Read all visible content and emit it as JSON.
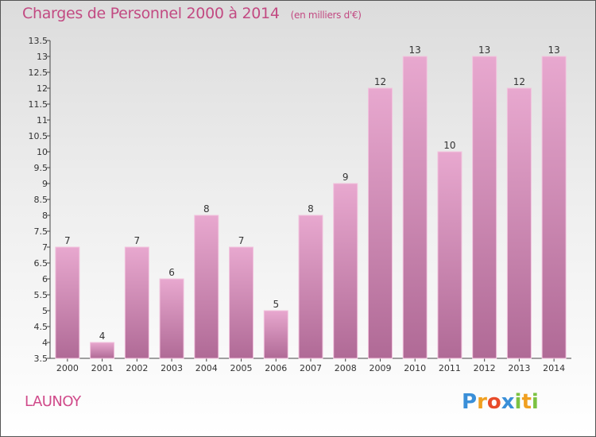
{
  "chart_data": {
    "type": "bar",
    "title": "Charges de Personnel 2000 à 2014",
    "subtitle": "(en milliers d'€)",
    "categories": [
      "2000",
      "2001",
      "2002",
      "2003",
      "2004",
      "2005",
      "2006",
      "2007",
      "2008",
      "2009",
      "2010",
      "2011",
      "2012",
      "2013",
      "2014"
    ],
    "values": [
      7,
      4,
      7,
      6,
      8,
      7,
      5,
      8,
      9,
      12,
      13,
      10,
      13,
      12,
      13
    ],
    "ylim": [
      3.5,
      13.5
    ],
    "yticks": [
      "3.5",
      "4",
      "4.5",
      "5",
      "5.5",
      "6",
      "6.5",
      "7",
      "7.5",
      "8",
      "8.5",
      "9",
      "9.5",
      "10",
      "10.5",
      "11",
      "11.5",
      "12",
      "12.5",
      "13",
      "13.5"
    ],
    "grid": false,
    "bar_color": "#d98ab8"
  },
  "commune": "LAUNOY",
  "logo": {
    "letters": [
      "P",
      "r",
      "o",
      "x",
      "i",
      "t",
      "i"
    ],
    "colors": [
      "#3a8fd8",
      "#f0a020",
      "#e84b2a",
      "#3a8fd8",
      "#7cc242",
      "#f0a020",
      "#7cc242"
    ]
  }
}
